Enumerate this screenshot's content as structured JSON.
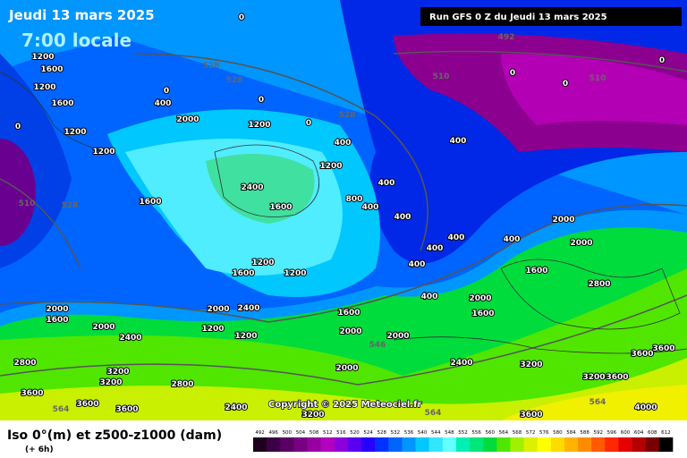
{
  "header": {
    "date": "Jeudi 13 mars 2025",
    "time": "7:00 locale",
    "run": "Run GFS 0 Z du Jeudi 13 mars 2025"
  },
  "copyright": "Copyright © 2025 Meteociel.fr",
  "contour_labels": [
    "0",
    "492",
    "510",
    "510",
    "0",
    "0",
    "0",
    "528",
    "528",
    "528",
    "528",
    "510",
    "1200",
    "1600",
    "1200",
    "1600",
    "0",
    "1200",
    "1200",
    "0",
    "400",
    "2000",
    "1200",
    "0",
    "0",
    "400",
    "1200",
    "2400",
    "1600",
    "1600",
    "800",
    "400",
    "400",
    "400",
    "400",
    "2000",
    "2000",
    "2800",
    "1600",
    "1200",
    "1200",
    "1600",
    "2000",
    "2400",
    "1200",
    "1200",
    "1600",
    "2000",
    "1600",
    "2000",
    "2000",
    "546",
    "2000",
    "1600",
    "2000",
    "2400",
    "2800",
    "3200",
    "3200",
    "3600",
    "3600",
    "3600",
    "2800",
    "2000",
    "2400",
    "3200",
    "3600",
    "3600",
    "3200",
    "3600",
    "4000",
    "564",
    "3600",
    "2400",
    "3200",
    "564",
    "564",
    "400",
    "400",
    "400",
    "400",
    "400"
  ],
  "legend": {
    "title": "Iso 0°(m) et z500-z1000 (dam)",
    "step": "(+ 6h)",
    "scale": [
      492,
      496,
      500,
      504,
      508,
      512,
      516,
      520,
      524,
      528,
      532,
      536,
      540,
      544,
      548,
      552,
      556,
      560,
      564,
      568,
      572,
      576,
      580,
      584,
      588,
      592,
      596,
      600,
      604,
      608,
      612
    ],
    "colors": [
      "#1e001e",
      "#3c0046",
      "#5a0064",
      "#780082",
      "#9600a0",
      "#b400be",
      "#8c00dc",
      "#5a00f0",
      "#2800ff",
      "#0032ff",
      "#0064ff",
      "#0096ff",
      "#00c8ff",
      "#32e6ff",
      "#64ffff",
      "#00f0b4",
      "#00e678",
      "#00dc3c",
      "#50e600",
      "#a0f000",
      "#dcf000",
      "#ffff00",
      "#ffdc00",
      "#ffb400",
      "#ff8c00",
      "#ff5a00",
      "#ff2800",
      "#e60000",
      "#b40000",
      "#780000",
      "#000000"
    ]
  }
}
